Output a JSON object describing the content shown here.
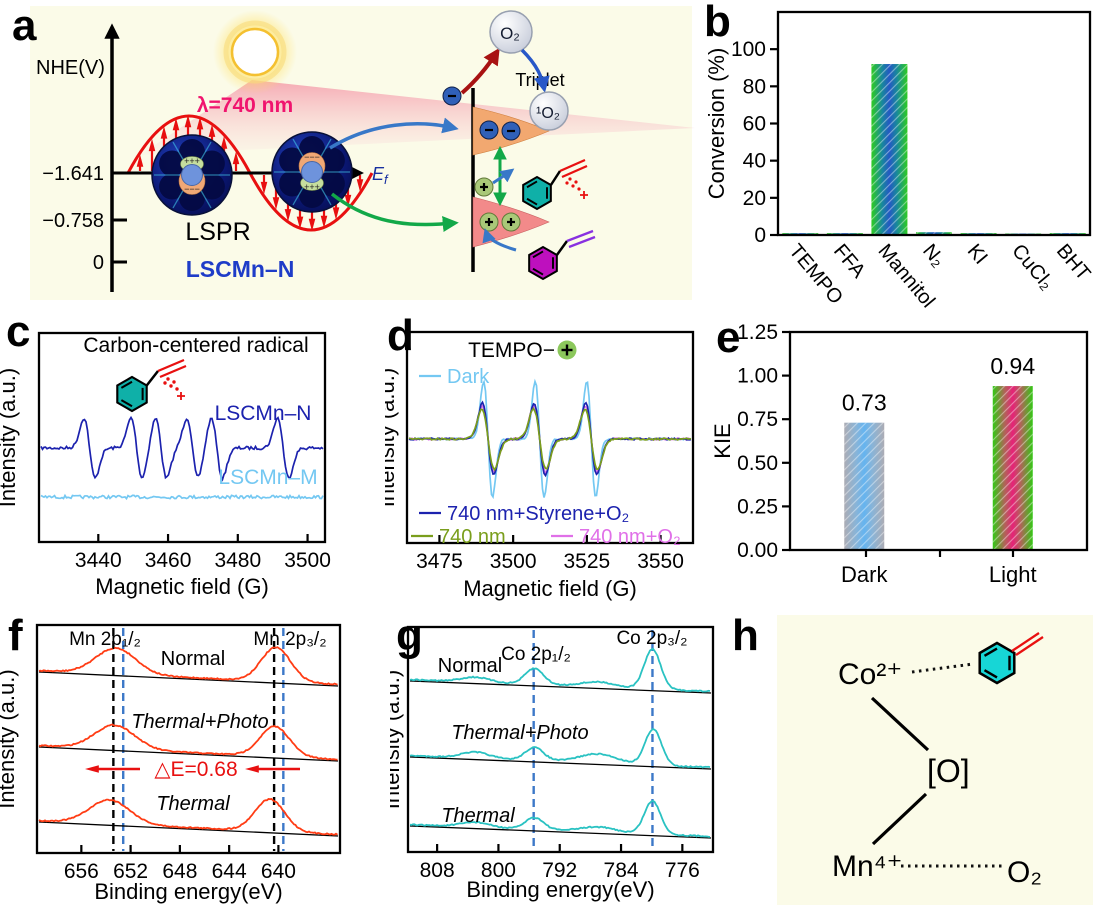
{
  "panels": {
    "a": {
      "letter": "a",
      "axis_label": "NHE(V)",
      "axis_ticks": [
        "−1.641",
        "−0.758",
        "0"
      ],
      "wavelength": "λ=740 nm",
      "lspr_label": "LSPR",
      "catalyst_label": "LSCMn–N",
      "fermi_main": "E",
      "fermi_sub": "f",
      "o2_label": "O₂",
      "triplet_label": "Triplet",
      "singlet_o2_label": "¹O₂",
      "plus_marks": "+++",
      "minus_marks": "−−−"
    },
    "b": {
      "letter": "b"
    },
    "c": {
      "letter": "c"
    },
    "d": {
      "letter": "d"
    },
    "e": {
      "letter": "e"
    },
    "f": {
      "letter": "f"
    },
    "g": {
      "letter": "g"
    },
    "h": {
      "letter": "h",
      "cobalt": "Co²⁺",
      "oxygen_bridge": "[O]",
      "manganese": "Mn⁴⁺",
      "oxygen": "O₂"
    }
  },
  "colors": {
    "cream_bg": "#FBFBE8",
    "accent_red": "#E81010",
    "deep_pink": "#F0146E",
    "navy": "#1C22AE",
    "light_blue": "#74C8F2",
    "olive": "#7A9E1C",
    "magenta_trace": "#E070E8",
    "xps_red": "#FF3C14",
    "xps_teal": "#2AC2C2",
    "dash_blue": "#3C78C8",
    "bar_green": "#2ECC20",
    "bar_blue": "#2458C4"
  },
  "chart_data": [
    {
      "id": "b",
      "type": "bar",
      "ylabel": "Conversion (%)",
      "categories": [
        "TEMPO",
        "FFA",
        "Mannitol",
        "N₂",
        "KI",
        "CuCl₂",
        "BHT"
      ],
      "values": [
        1,
        1,
        92,
        1.5,
        1,
        0.8,
        1
      ],
      "ylim": [
        0,
        120
      ],
      "ytick_values": [
        0,
        20,
        40,
        60,
        80,
        100
      ],
      "yticks": [
        "0",
        "20",
        "40",
        "60",
        "80",
        "100"
      ],
      "bar_gradient": [
        "#2ECC20",
        "#18889C",
        "#2458C4"
      ],
      "legend_position": "none",
      "grid": false
    },
    {
      "id": "c",
      "type": "epr",
      "title": "Carbon-centered radical",
      "xlabel": "Magnetic field (G)",
      "ylabel": "Intensity (a.u.)",
      "xlim": [
        3423,
        3505
      ],
      "xticks": [
        3440,
        3460,
        3480,
        3500
      ],
      "traces": [
        {
          "name": "LSCMn–N",
          "color": "#1C22AE",
          "width": 1.6,
          "rel_amp": 1,
          "peaks": [
            3437.5,
            3451,
            3458,
            3467,
            3474,
            3493
          ]
        },
        {
          "name": "LSCMn–M",
          "color": "#74C8F2",
          "width": 1,
          "rel_amp": 0,
          "peaks": []
        }
      ]
    },
    {
      "id": "d",
      "type": "epr",
      "title": "TEMPO−",
      "title_plus": true,
      "xlabel": "Magnetic field (G)",
      "ylabel": "Intensity (a.u.)",
      "xlim": [
        3464,
        3561
      ],
      "xticks": [
        3475,
        3500,
        3525,
        3550
      ],
      "peaks": [
        3491.5,
        3509,
        3526.5
      ],
      "traces": [
        {
          "name": "Dark",
          "color": "#74C8F2",
          "width": 1.5,
          "rel_amp": 1
        },
        {
          "name": "740 nm+O₂",
          "color": "#E070E8",
          "width": 2.0,
          "rel_amp": 0.57
        },
        {
          "name": "740 nm+Styrene+O₂",
          "color": "#1C22AE",
          "width": 1.9,
          "rel_amp": 0.62
        },
        {
          "name": "740 nm",
          "color": "#7A9E1C",
          "width": 2.1,
          "rel_amp": 0.52
        }
      ]
    },
    {
      "id": "e",
      "type": "bar",
      "ylabel": "KIE",
      "categories": [
        "Dark",
        "Light"
      ],
      "values": [
        0.73,
        0.94
      ],
      "value_labels": [
        "0.73",
        "0.94"
      ],
      "ylim": [
        0,
        1.25
      ],
      "ytick_values": [
        0,
        0.25,
        0.5,
        0.75,
        1,
        1.25
      ],
      "yticks": [
        "0.00",
        "0.25",
        "0.50",
        "0.75",
        "1.00",
        "1.25"
      ],
      "bar_colors": [
        [
          "#ACACB4",
          "#88B4D8",
          "#64B4F0"
        ],
        [
          "#32C814",
          "#B06458",
          "#E62278"
        ]
      ],
      "grid": false
    },
    {
      "id": "f",
      "type": "xps",
      "xlabel": "Binding energy(eV)",
      "ylabel": "Intensity (a.u.)",
      "xlim": [
        659.6,
        635
      ],
      "xticks": [
        656,
        652,
        648,
        644,
        640
      ],
      "color": "#FF3C14",
      "dashed_black": [
        653.4,
        640.35
      ],
      "dashed_blue": [
        652.6,
        639.6
      ],
      "region_labels": [
        "Mn 2p₁/₂",
        "Mn 2p₃/₂"
      ],
      "delta_label": "△E=0.68",
      "traces": [
        {
          "name": "Normal",
          "peaks": [
            {
              "c": 653.2,
              "w": 2.3
            },
            {
              "c": 640.2,
              "w": 1.7
            }
          ]
        },
        {
          "name": "Thermal+Photo",
          "italic": true,
          "peaks": [
            {
              "c": 653.3,
              "w": 2.3
            },
            {
              "c": 640.3,
              "w": 1.7
            }
          ]
        },
        {
          "name": "Thermal",
          "italic": true,
          "peaks": [
            {
              "c": 653.7,
              "w": 2.3
            },
            {
              "c": 640.7,
              "w": 1.7
            }
          ]
        }
      ]
    },
    {
      "id": "g",
      "type": "xps",
      "xlabel": "Binding energy(eV)",
      "ylabel": "Intensity (a.u.)",
      "xlim": [
        811.8,
        772
      ],
      "xticks": [
        808,
        800,
        792,
        784,
        776
      ],
      "color": "#2AC2C2",
      "dashed_blue": [
        795.4,
        779.9
      ],
      "region_labels": [
        "Co 2p₁/₂",
        "Co 2p₃/₂"
      ],
      "traces": [
        {
          "name": "Normal",
          "peaks": [
            {
              "c": 803,
              "w": 2.6
            },
            {
              "c": 795.3,
              "w": 1.7
            },
            {
              "c": 787,
              "w": 3.2
            },
            {
              "c": 779.9,
              "w": 1.5
            }
          ]
        },
        {
          "name": "Thermal+Photo",
          "italic": true,
          "peaks": [
            {
              "c": 803,
              "w": 2.6
            },
            {
              "c": 795.3,
              "w": 1.7
            },
            {
              "c": 787,
              "w": 3.5
            },
            {
              "c": 779.8,
              "w": 1.5
            }
          ]
        },
        {
          "name": "Thermal",
          "italic": true,
          "peaks": [
            {
              "c": 803,
              "w": 2.6
            },
            {
              "c": 795.3,
              "w": 1.7
            },
            {
              "c": 787,
              "w": 3.2
            },
            {
              "c": 779.9,
              "w": 1.5
            }
          ]
        }
      ]
    }
  ]
}
